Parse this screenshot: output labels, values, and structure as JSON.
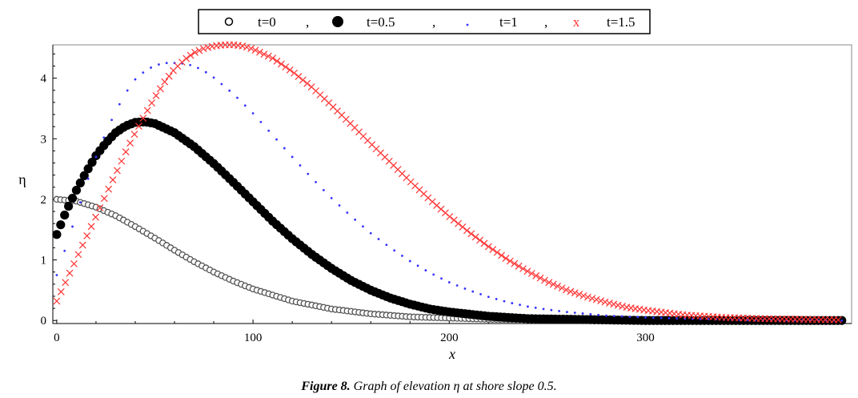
{
  "chart_data": {
    "type": "scatter",
    "xlabel": "x",
    "ylabel": "η",
    "xlim": [
      -2,
      405
    ],
    "ylim": [
      -0.05,
      4.55
    ],
    "xticks": [
      0,
      100,
      200,
      300
    ],
    "yticks": [
      0,
      1,
      2,
      3,
      4
    ],
    "grid": false,
    "legend_position": "top",
    "legend": {
      "items": [
        {
          "marker": "o",
          "label": "t=0"
        },
        {
          "marker": "●",
          "label": "t=0.5"
        },
        {
          "marker": ".",
          "label": "t=1"
        },
        {
          "marker": "x",
          "label": "t=1.5"
        }
      ],
      "separator": ","
    },
    "series": [
      {
        "label": "t=0",
        "marker": "open-circle",
        "color": "#555555",
        "x": [
          0,
          10,
          20,
          30,
          40,
          50,
          60,
          70,
          80,
          90,
          100,
          120,
          140,
          160,
          180,
          200,
          220,
          250,
          300,
          350,
          400
        ],
        "y": [
          2.0,
          1.97,
          1.87,
          1.73,
          1.55,
          1.36,
          1.16,
          0.97,
          0.8,
          0.65,
          0.52,
          0.32,
          0.19,
          0.11,
          0.06,
          0.04,
          0.02,
          0.01,
          0.0,
          0.0,
          0.0
        ]
      },
      {
        "label": "t=0.5",
        "marker": "filled-circle",
        "color": "#000000",
        "x": [
          0,
          5,
          10,
          15,
          20,
          25,
          30,
          35,
          40,
          45,
          50,
          60,
          70,
          80,
          90,
          100,
          110,
          120,
          130,
          140,
          150,
          160,
          170,
          180,
          190,
          200,
          220,
          240,
          260,
          280,
          300,
          330,
          360,
          400
        ],
        "y": [
          1.42,
          1.82,
          2.15,
          2.45,
          2.72,
          2.93,
          3.1,
          3.21,
          3.27,
          3.28,
          3.25,
          3.1,
          2.87,
          2.59,
          2.28,
          1.96,
          1.64,
          1.35,
          1.09,
          0.86,
          0.66,
          0.5,
          0.37,
          0.27,
          0.19,
          0.14,
          0.07,
          0.03,
          0.02,
          0.01,
          0.0,
          0.0,
          0.0,
          0.0
        ]
      },
      {
        "label": "t=1",
        "marker": "dot",
        "color": "#3333ff",
        "x": [
          0,
          5,
          10,
          15,
          20,
          25,
          30,
          35,
          40,
          45,
          50,
          55,
          60,
          65,
          70,
          75,
          80,
          90,
          100,
          110,
          120,
          130,
          140,
          150,
          160,
          170,
          180,
          190,
          200,
          210,
          220,
          230,
          240,
          250,
          260,
          280,
          300,
          320,
          350,
          400
        ],
        "y": [
          0.75,
          1.25,
          1.75,
          2.25,
          2.7,
          3.1,
          3.45,
          3.75,
          3.98,
          4.12,
          4.21,
          4.25,
          4.25,
          4.24,
          4.2,
          4.12,
          4.01,
          3.74,
          3.42,
          3.06,
          2.7,
          2.35,
          2.02,
          1.72,
          1.44,
          1.2,
          0.98,
          0.79,
          0.63,
          0.5,
          0.39,
          0.3,
          0.23,
          0.18,
          0.14,
          0.08,
          0.05,
          0.03,
          0.01,
          0.0
        ]
      },
      {
        "label": "t=1.5",
        "marker": "cross",
        "color": "#ff3333",
        "x": [
          0,
          5,
          10,
          15,
          20,
          25,
          30,
          35,
          40,
          45,
          50,
          55,
          60,
          65,
          70,
          75,
          80,
          85,
          90,
          95,
          100,
          110,
          120,
          130,
          140,
          150,
          160,
          170,
          180,
          190,
          200,
          210,
          220,
          230,
          240,
          250,
          260,
          270,
          280,
          290,
          300,
          320,
          340,
          360,
          380,
          400
        ],
        "y": [
          0.32,
          0.67,
          1.02,
          1.37,
          1.72,
          2.07,
          2.42,
          2.77,
          3.1,
          3.4,
          3.68,
          3.94,
          4.15,
          4.3,
          4.42,
          4.49,
          4.53,
          4.55,
          4.55,
          4.53,
          4.48,
          4.33,
          4.11,
          3.85,
          3.55,
          3.24,
          2.92,
          2.61,
          2.3,
          2.0,
          1.72,
          1.46,
          1.22,
          1.0,
          0.81,
          0.64,
          0.5,
          0.39,
          0.3,
          0.22,
          0.17,
          0.09,
          0.05,
          0.03,
          0.02,
          0.01
        ]
      }
    ]
  },
  "caption": {
    "label": "Figure 8.",
    "text": " Graph of elevation η at shore slope 0.5."
  }
}
